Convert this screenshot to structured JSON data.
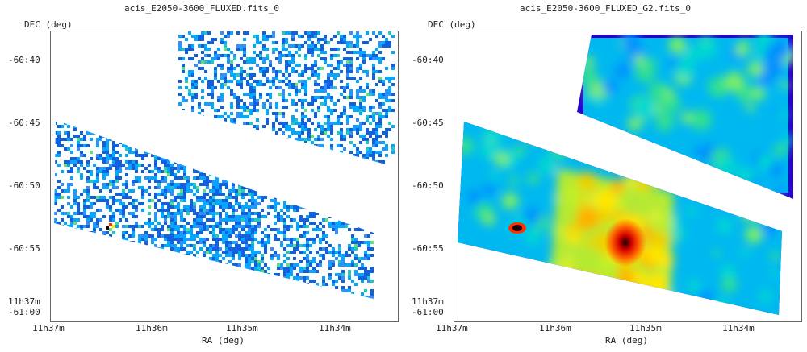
{
  "panels": [
    {
      "title": "acis_E2050-3600_FLUXED.fits_0",
      "ylabel": "DEC (deg)",
      "xlabel": "RA (deg)",
      "style": "scatter-pixels",
      "yticks": [
        "-60:40",
        "-60:45",
        "-60:50",
        "-60:55",
        "11h37m",
        "-61:00"
      ],
      "xticks": [
        "11h37m",
        "11h36m",
        "11h35m",
        "11h34m"
      ]
    },
    {
      "title": "acis_E2050-3600_FLUXED_G2.fits_0",
      "ylabel": "DEC (deg)",
      "xlabel": "RA (deg)",
      "style": "smoothed-heatmap",
      "yticks": [
        "-60:40",
        "-60:45",
        "-60:50",
        "-60:55",
        "11h37m",
        "-61:00"
      ],
      "xticks": [
        "11h37m",
        "11h36m",
        "11h35m",
        "11h34m"
      ]
    }
  ],
  "colors": {
    "low": "#2a00c8",
    "mid_low": "#00a8ff",
    "mid": "#30e090",
    "mid_high": "#ffe600",
    "high": "#ff3000",
    "peak": "#200000"
  }
}
